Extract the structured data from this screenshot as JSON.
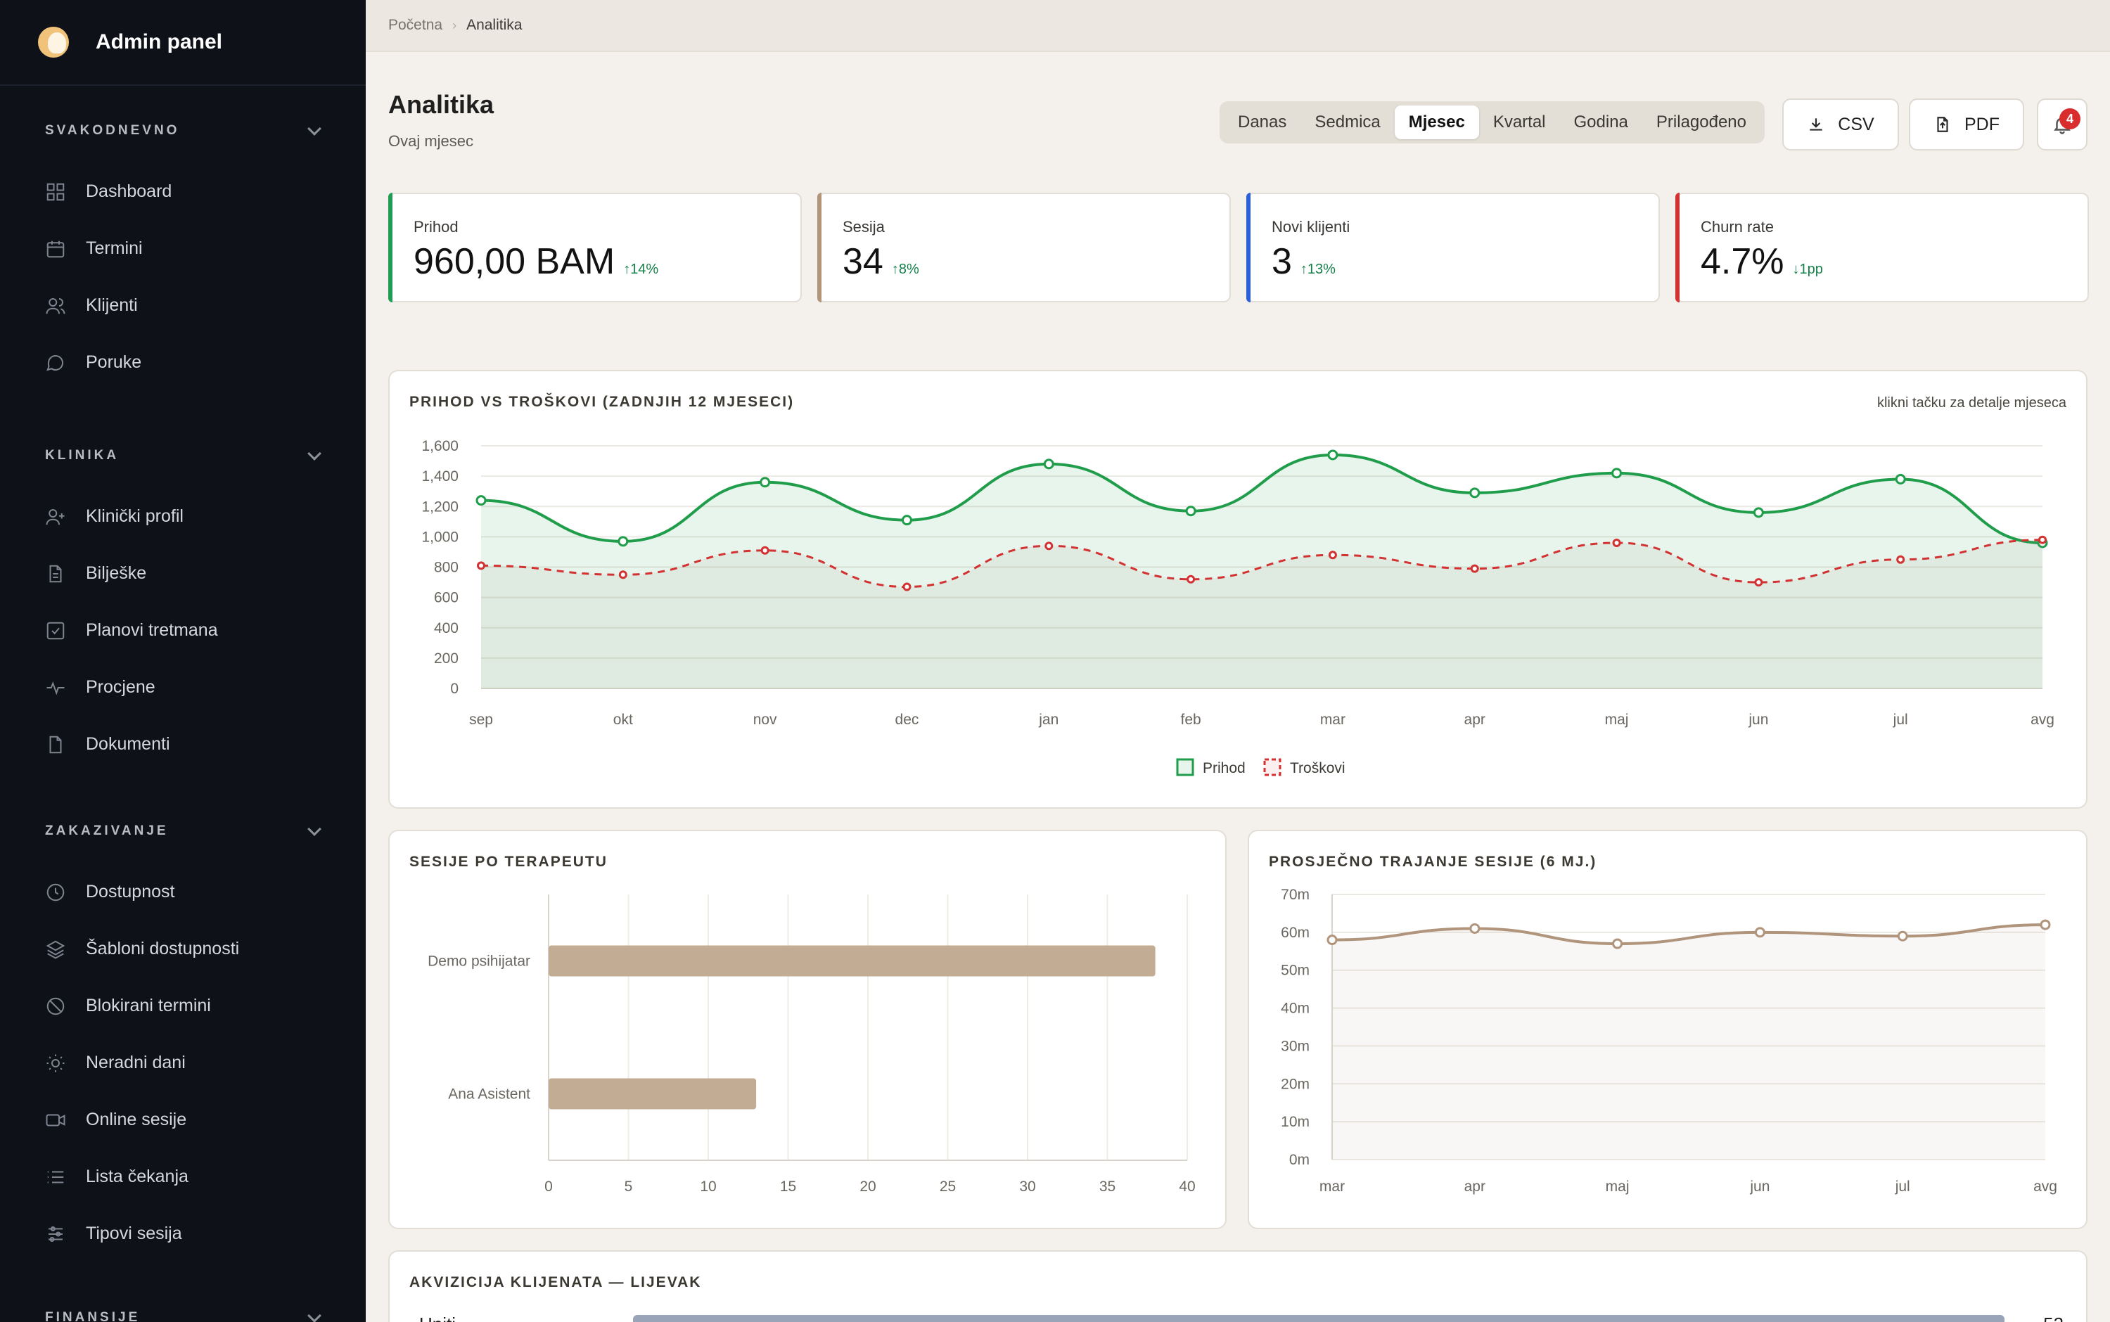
{
  "sidebar": {
    "brand": "Admin panel",
    "sections": [
      {
        "title": "SVAKODNEVNO",
        "items": [
          {
            "label": "Dashboard",
            "icon": "grid-icon"
          },
          {
            "label": "Termini",
            "icon": "calendar-icon"
          },
          {
            "label": "Klijenti",
            "icon": "users-icon"
          },
          {
            "label": "Poruke",
            "icon": "message-icon"
          }
        ]
      },
      {
        "title": "KLINIKA",
        "items": [
          {
            "label": "Klinički profil",
            "icon": "user-plus-icon"
          },
          {
            "label": "Bilješke",
            "icon": "document-icon"
          },
          {
            "label": "Planovi tretmana",
            "icon": "checkbox-icon"
          },
          {
            "label": "Procjene",
            "icon": "pulse-icon"
          },
          {
            "label": "Dokumenti",
            "icon": "file-icon"
          }
        ]
      },
      {
        "title": "ZAKAZIVANJE",
        "items": [
          {
            "label": "Dostupnost",
            "icon": "clock-icon"
          },
          {
            "label": "Šabloni dostupnosti",
            "icon": "layers-icon"
          },
          {
            "label": "Blokirani termini",
            "icon": "ban-icon"
          },
          {
            "label": "Neradni dani",
            "icon": "sun-icon"
          },
          {
            "label": "Online sesije",
            "icon": "video-icon"
          },
          {
            "label": "Lista čekanja",
            "icon": "list-icon"
          },
          {
            "label": "Tipovi sesija",
            "icon": "sliders-icon"
          }
        ]
      },
      {
        "title": "FINANSIJE",
        "items": []
      }
    ]
  },
  "breadcrumb": {
    "home": "Početna",
    "sep": "›",
    "current": "Analitika"
  },
  "header": {
    "title": "Analitika",
    "subtitle": "Ovaj mjesec"
  },
  "periods": {
    "active_index": 2,
    "options": [
      "Danas",
      "Sedmica",
      "Mjesec",
      "Kvartal",
      "Godina",
      "Prilagođeno"
    ]
  },
  "actions": {
    "csv": "CSV",
    "pdf": "PDF",
    "notifications": "4"
  },
  "kpis": [
    {
      "label": "Prihod",
      "value": "960,00 BAM",
      "delta": "↑14%",
      "color": "#1f9d55"
    },
    {
      "label": "Sesija",
      "value": "34",
      "delta": "↑8%",
      "color": "#b3967a"
    },
    {
      "label": "Novi klijenti",
      "value": "3",
      "delta": "↑13%",
      "color": "#2b5fd9"
    },
    {
      "label": "Churn rate",
      "value": "4.7%",
      "delta": "↓1pp",
      "color": "#d23232"
    }
  ],
  "cards": {
    "revenue": {
      "title": "PRIHOD VS TROŠKOVI (ZADNJIH 12 MJESECI)",
      "hint": "klikni tačku za detalje mjeseca"
    },
    "therapist": {
      "title": "SESIJE PO TERAPEUTU"
    },
    "duration": {
      "title": "PROSJEČNO TRAJANJE SESIJE (6 MJ.)"
    },
    "funnel": {
      "title": "AKVIZICIJA KLIJENATA — LIJEVAK"
    }
  },
  "chart_data": [
    {
      "type": "area",
      "title": "PRIHOD VS TROŠKOVI (ZADNJIH 12 MJESECI)",
      "categories": [
        "sep",
        "okt",
        "nov",
        "dec",
        "jan",
        "feb",
        "mar",
        "apr",
        "maj",
        "jun",
        "jul",
        "avg"
      ],
      "ylim": [
        0,
        1600
      ],
      "yticks": [
        "0",
        "200",
        "400",
        "600",
        "800",
        "1,000",
        "1,200",
        "1,400",
        "1,600"
      ],
      "grid": true,
      "legend": "bottom-center",
      "series": [
        {
          "name": "Prihod",
          "color": "#1f9d4a",
          "values": [
            1240,
            970,
            1360,
            1110,
            1480,
            1170,
            1540,
            1290,
            1420,
            1160,
            1380,
            960
          ]
        },
        {
          "name": "Troškovi",
          "color": "#d23232",
          "values": [
            810,
            750,
            910,
            670,
            940,
            720,
            880,
            790,
            960,
            700,
            850,
            980
          ]
        }
      ]
    },
    {
      "type": "bar",
      "title": "SESIJE PO TERAPEUTU",
      "orientation": "horizontal",
      "categories": [
        "Demo psihijatar",
        "Ana Asistent"
      ],
      "values": [
        38,
        13
      ],
      "xlim": [
        0,
        40
      ],
      "xticks": [
        "0",
        "5",
        "10",
        "15",
        "20",
        "25",
        "30",
        "35",
        "40"
      ],
      "color": "#c2ac94"
    },
    {
      "type": "line",
      "title": "PROSJEČNO TRAJANJE SESIJE (6 MJ.)",
      "categories": [
        "mar",
        "apr",
        "maj",
        "jun",
        "jul",
        "avg"
      ],
      "values": [
        58,
        61,
        57,
        60,
        59,
        62
      ],
      "ylim": [
        0,
        70
      ],
      "yticks": [
        "0m",
        "10m",
        "20m",
        "30m",
        "40m",
        "50m",
        "60m",
        "70m"
      ],
      "color": "#b0957c"
    },
    {
      "type": "bar",
      "title": "AKVIZICIJA KLIJENATA — LIJEVAK",
      "categories": [
        "Upiti"
      ],
      "values": [
        52
      ],
      "color": "#9aa4b8"
    }
  ]
}
